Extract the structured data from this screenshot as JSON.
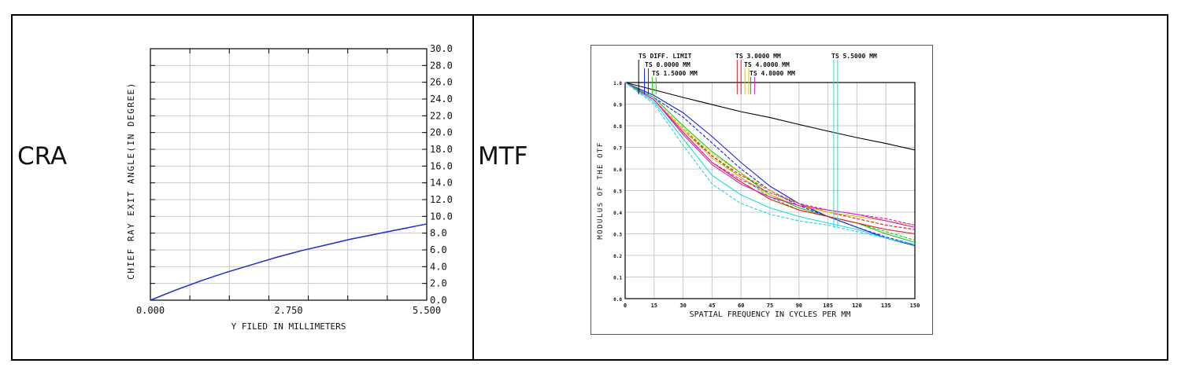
{
  "cells": [
    {
      "label": "CRA"
    },
    {
      "label": "MTF"
    }
  ],
  "colors": {
    "border": "#000000",
    "grid": "#c8c8c8",
    "cra_line": "#1f2bd0"
  },
  "chart_data": [
    {
      "type": "line",
      "title": "",
      "xlabel": "Y FILED IN MILLIMETERS",
      "ylabel": "CHIEF RAY EXIT ANGLE(IN DEGREE)",
      "xlim": [
        0,
        5.5
      ],
      "ylim": [
        0,
        30
      ],
      "x_tick_labels": [
        "0.000",
        "2.750",
        "5.500"
      ],
      "x_ticks": [
        0,
        2.75,
        5.5
      ],
      "y_tick_labels": [
        "0.0",
        "2.0",
        "4.0",
        "6.0",
        "8.0",
        "10.0",
        "12.0",
        "14.0",
        "16.0",
        "18.0",
        "20.0",
        "22.0",
        "24.0",
        "26.0",
        "28.0",
        "30.0"
      ],
      "y_ticks": [
        0,
        2,
        4,
        6,
        8,
        10,
        12,
        14,
        16,
        18,
        20,
        22,
        24,
        26,
        28,
        30
      ],
      "series": [
        {
          "name": "CRA",
          "color": "#1f2bd0",
          "x": [
            0,
            0.5,
            1.0,
            1.5,
            2.0,
            2.5,
            3.0,
            3.5,
            4.0,
            4.5,
            5.0,
            5.5
          ],
          "y": [
            0,
            1.2,
            2.3,
            3.3,
            4.2,
            5.1,
            5.9,
            6.6,
            7.3,
            7.9,
            8.5,
            9.1
          ]
        }
      ]
    },
    {
      "type": "line",
      "title": "",
      "xlabel": "SPATIAL FREQUENCY IN CYCLES PER MM",
      "ylabel": "MODULUS OF THE OTF",
      "xlim": [
        0,
        150
      ],
      "ylim": [
        0,
        1.0
      ],
      "x_ticks": [
        0,
        15,
        30,
        45,
        60,
        75,
        90,
        105,
        120,
        135,
        150
      ],
      "x_tick_labels": [
        "0",
        "15",
        "30",
        "45",
        "60",
        "75",
        "90",
        "105",
        "120",
        "135",
        "150"
      ],
      "y_ticks": [
        0,
        0.1,
        0.2,
        0.3,
        0.4,
        0.5,
        0.6,
        0.7,
        0.8,
        0.9,
        1.0
      ],
      "y_tick_labels": [
        "0.0",
        "0.1",
        "0.2",
        "0.3",
        "0.4",
        "0.5",
        "0.6",
        "0.7",
        "0.8",
        "0.9",
        "1.0"
      ],
      "legend": [
        {
          "label": "TS DIFF. LIMIT",
          "color": "#000000",
          "marker_x": [
            7
          ]
        },
        {
          "label": "TS 0.0000 MM",
          "color": "#1a22d6",
          "marker_x": [
            10,
            12
          ]
        },
        {
          "label": "TS 1.5000 MM",
          "color": "#21c21a",
          "marker_x": [
            14,
            16
          ]
        },
        {
          "label": "TS 3.0000 MM",
          "color": "#e0161e",
          "marker_x": [
            58,
            60
          ]
        },
        {
          "label": "TS 4.0000 MM",
          "color": "#d8c20e",
          "marker_x": [
            62,
            64
          ]
        },
        {
          "label": "TS 4.8000 MM",
          "color": "#d61fc8",
          "marker_x": [
            65,
            67
          ]
        },
        {
          "label": "TS 5.5000 MM",
          "color": "#1ed8e0",
          "marker_x": [
            108,
            110
          ]
        }
      ],
      "x": [
        0,
        15,
        30,
        45,
        60,
        75,
        90,
        105,
        120,
        135,
        150
      ],
      "series": [
        {
          "name": "DIFF. LIMIT",
          "color": "#000000",
          "dash": false,
          "y": [
            1.0,
            0.966,
            0.931,
            0.898,
            0.865,
            0.838,
            0.806,
            0.775,
            0.745,
            0.718,
            0.688
          ]
        },
        {
          "name": "0.0000 MM T",
          "color": "#1a22d6",
          "dash": false,
          "y": [
            1.0,
            0.94,
            0.86,
            0.75,
            0.63,
            0.52,
            0.44,
            0.38,
            0.33,
            0.28,
            0.245
          ]
        },
        {
          "name": "0.0000 MM S",
          "color": "#1a22d6",
          "dash": true,
          "y": [
            1.0,
            0.93,
            0.84,
            0.72,
            0.6,
            0.5,
            0.43,
            0.38,
            0.33,
            0.285,
            0.25
          ]
        },
        {
          "name": "1.5000 MM T",
          "color": "#21c21a",
          "dash": false,
          "y": [
            1.0,
            0.93,
            0.8,
            0.68,
            0.58,
            0.48,
            0.42,
            0.38,
            0.35,
            0.3,
            0.26
          ]
        },
        {
          "name": "1.5000 MM S",
          "color": "#21c21a",
          "dash": true,
          "y": [
            1.0,
            0.92,
            0.79,
            0.66,
            0.56,
            0.47,
            0.41,
            0.38,
            0.35,
            0.31,
            0.27
          ]
        },
        {
          "name": "3.0000 MM T",
          "color": "#e0161e",
          "dash": false,
          "y": [
            1.0,
            0.92,
            0.77,
            0.63,
            0.54,
            0.46,
            0.41,
            0.38,
            0.35,
            0.32,
            0.3
          ]
        },
        {
          "name": "3.0000 MM S",
          "color": "#e0161e",
          "dash": true,
          "y": [
            1.0,
            0.92,
            0.78,
            0.66,
            0.57,
            0.5,
            0.44,
            0.4,
            0.37,
            0.34,
            0.32
          ]
        },
        {
          "name": "4.0000 MM T",
          "color": "#d8c20e",
          "dash": false,
          "y": [
            1.0,
            0.92,
            0.78,
            0.65,
            0.56,
            0.48,
            0.43,
            0.4,
            0.38,
            0.36,
            0.33
          ]
        },
        {
          "name": "4.0000 MM S",
          "color": "#d8c20e",
          "dash": true,
          "y": [
            1.0,
            0.92,
            0.79,
            0.67,
            0.58,
            0.5,
            0.44,
            0.4,
            0.38,
            0.36,
            0.34
          ]
        },
        {
          "name": "4.8000 MM T",
          "color": "#d61fc8",
          "dash": false,
          "y": [
            1.0,
            0.92,
            0.76,
            0.62,
            0.53,
            0.47,
            0.43,
            0.41,
            0.39,
            0.36,
            0.33
          ]
        },
        {
          "name": "4.8000 MM S",
          "color": "#d61fc8",
          "dash": true,
          "y": [
            1.0,
            0.92,
            0.77,
            0.63,
            0.55,
            0.49,
            0.44,
            0.41,
            0.39,
            0.37,
            0.34
          ]
        },
        {
          "name": "5.5000 MM T",
          "color": "#1ed8e0",
          "dash": false,
          "y": [
            1.0,
            0.91,
            0.74,
            0.57,
            0.48,
            0.42,
            0.38,
            0.35,
            0.32,
            0.28,
            0.25
          ]
        },
        {
          "name": "5.5000 MM S",
          "color": "#1ed8e0",
          "dash": true,
          "y": [
            1.0,
            0.9,
            0.71,
            0.53,
            0.44,
            0.39,
            0.36,
            0.34,
            0.31,
            0.28,
            0.25
          ]
        }
      ]
    }
  ]
}
